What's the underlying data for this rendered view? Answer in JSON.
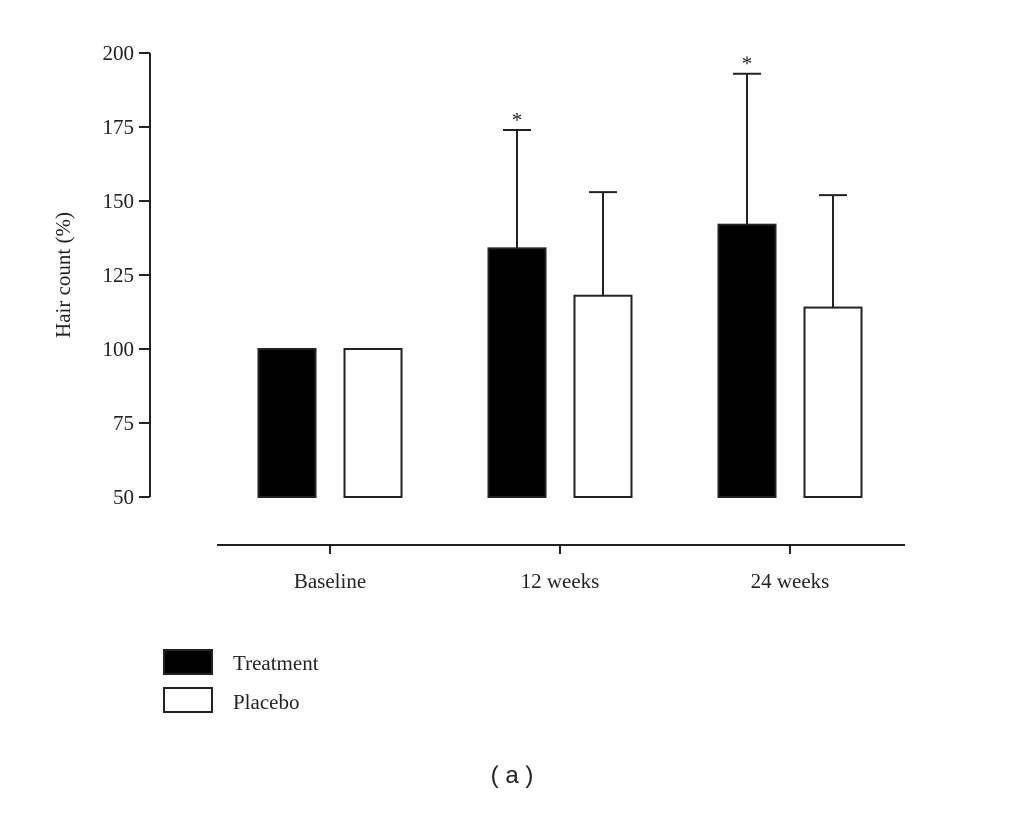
{
  "chart_data": {
    "type": "bar",
    "title": "",
    "caption": "( a )",
    "ylabel": "Hair count (%)",
    "xlabel": "",
    "ylim": [
      50,
      200
    ],
    "yticks": [
      50,
      75,
      100,
      125,
      150,
      175,
      200
    ],
    "categories": [
      "Baseline",
      "12 weeks",
      "24 weeks"
    ],
    "series": [
      {
        "name": "Treatment",
        "color": "#000000",
        "values": [
          100,
          134,
          142
        ],
        "error_upper": [
          100,
          174,
          193
        ],
        "significance": [
          "",
          "*",
          "*"
        ]
      },
      {
        "name": "Placebo",
        "color": "#ffffff",
        "values": [
          100,
          118,
          114
        ],
        "error_upper": [
          100,
          153,
          152
        ],
        "significance": [
          "",
          "",
          ""
        ]
      }
    ],
    "legend_placement": "bottom-left",
    "grid": false
  }
}
